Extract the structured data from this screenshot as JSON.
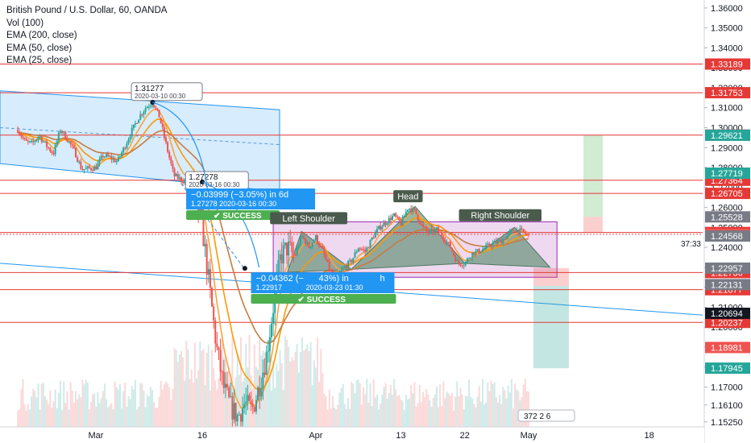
{
  "chart_data": {
    "type": "candlestick",
    "title": "British Pound / U.S. Dollar, 60, OANDA",
    "indicators": [
      "Vol (100)",
      "EMA (200, close)",
      "EMA (50, close)",
      "EMA (25, close)"
    ],
    "y_range": [
      1.15,
      1.364
    ],
    "x_range": [
      "2020-02-19",
      "2020-05-26"
    ],
    "x_ticks": [
      {
        "label": "Mar",
        "date": "2020-03-01"
      },
      {
        "label": "16",
        "date": "2020-03-16"
      },
      {
        "label": "Apr",
        "date": "2020-04-01"
      },
      {
        "label": "13",
        "date": "2020-04-13"
      },
      {
        "label": "22",
        "date": "2020-04-22"
      },
      {
        "label": "May",
        "date": "2020-05-01"
      },
      {
        "label": "18",
        "date": "2020-05-18"
      }
    ],
    "y_ticks": [
      "1.36000",
      "1.35000",
      "1.34000",
      "1.33000",
      "1.32000",
      "1.31000",
      "1.30000",
      "1.29000",
      "1.28000",
      "1.27000",
      "1.26000",
      "1.25000",
      "1.24000",
      "1.23000",
      "1.22000",
      "1.21000",
      "1.20000",
      "1.19000",
      "1.18000",
      "1.17000",
      "1.16100",
      "1.15250"
    ],
    "levels": [
      {
        "value": 1.33189,
        "label": "1.33189"
      },
      {
        "value": 1.31753,
        "label": "1.31753"
      },
      {
        "value": 1.29628,
        "label": "1.29628"
      },
      {
        "value": 1.27364,
        "label": "1.27364"
      },
      {
        "value": 1.26705,
        "label": "1.26705"
      },
      {
        "value": 1.24745,
        "label": "1.24745"
      },
      {
        "value": 1.22736,
        "label": "1.22736"
      },
      {
        "value": 1.21877,
        "label": "1.21877"
      },
      {
        "value": 1.20237,
        "label": "1.20237"
      }
    ],
    "axis_tags": [
      {
        "value": 1.29621,
        "label": "1.29621",
        "color": "#26a69a"
      },
      {
        "value": 1.27719,
        "label": "1.27719",
        "color": "#26a69a"
      },
      {
        "value": 1.25528,
        "label": "1.25528",
        "color": "#787b86"
      },
      {
        "value": 1.24655,
        "label": "1.24655",
        "color": "#ef5350"
      },
      {
        "value": 1.24568,
        "label": "1.24568",
        "color": "#787b86"
      },
      {
        "value": 1.22957,
        "label": "1.22957",
        "color": "#787b86"
      },
      {
        "value": 1.22131,
        "label": "1.22131",
        "color": "#787b86"
      },
      {
        "value": 1.20694,
        "label": "1.20694",
        "color": "#131722"
      },
      {
        "value": 1.18981,
        "label": "1.18981",
        "color": "#ef5350"
      },
      {
        "value": 1.17945,
        "label": "1.17945",
        "color": "#26a69a"
      }
    ],
    "countdown": "37:33",
    "price_path": [
      [
        "2020-02-19",
        1.299
      ],
      [
        "2020-02-20",
        1.293
      ],
      [
        "2020-02-21",
        1.292
      ],
      [
        "2020-02-22",
        1.296
      ],
      [
        "2020-02-23",
        1.291
      ],
      [
        "2020-02-24",
        1.287
      ],
      [
        "2020-02-25",
        1.299
      ],
      [
        "2020-02-26",
        1.294
      ],
      [
        "2020-02-27",
        1.288
      ],
      [
        "2020-02-28",
        1.279
      ],
      [
        "2020-03-01",
        1.28
      ],
      [
        "2020-03-02",
        1.286
      ],
      [
        "2020-03-03",
        1.285
      ],
      [
        "2020-03-04",
        1.283
      ],
      [
        "2020-03-05",
        1.29
      ],
      [
        "2020-03-06",
        1.298
      ],
      [
        "2020-03-07",
        1.305
      ],
      [
        "2020-03-08",
        1.31
      ],
      [
        "2020-03-09",
        1.3127
      ],
      [
        "2020-03-10",
        1.305
      ],
      [
        "2020-03-11",
        1.29
      ],
      [
        "2020-03-12",
        1.276
      ],
      [
        "2020-03-13",
        1.274
      ],
      [
        "2020-03-14",
        1.272
      ],
      [
        "2020-03-15",
        1.265
      ],
      [
        "2020-03-16",
        1.25
      ],
      [
        "2020-03-17",
        1.22
      ],
      [
        "2020-03-18",
        1.19
      ],
      [
        "2020-03-19",
        1.17
      ],
      [
        "2020-03-20",
        1.16
      ],
      [
        "2020-03-21",
        1.155
      ],
      [
        "2020-03-22",
        1.162
      ],
      [
        "2020-03-23",
        1.158
      ],
      [
        "2020-03-24",
        1.17
      ],
      [
        "2020-03-25",
        1.185
      ],
      [
        "2020-03-26",
        1.21
      ],
      [
        "2020-03-27",
        1.235
      ],
      [
        "2020-03-28",
        1.24
      ],
      [
        "2020-03-29",
        1.235
      ],
      [
        "2020-03-30",
        1.246
      ],
      [
        "2020-03-31",
        1.24
      ],
      [
        "2020-04-01",
        1.245
      ],
      [
        "2020-04-02",
        1.238
      ],
      [
        "2020-04-03",
        1.228
      ],
      [
        "2020-04-04",
        1.225
      ],
      [
        "2020-04-05",
        1.23
      ],
      [
        "2020-04-06",
        1.233
      ],
      [
        "2020-04-07",
        1.24
      ],
      [
        "2020-04-08",
        1.238
      ],
      [
        "2020-04-09",
        1.245
      ],
      [
        "2020-04-10",
        1.25
      ],
      [
        "2020-04-11",
        1.253
      ],
      [
        "2020-04-12",
        1.256
      ],
      [
        "2020-04-13",
        1.252
      ],
      [
        "2020-04-14",
        1.26
      ],
      [
        "2020-04-15",
        1.258
      ],
      [
        "2020-04-16",
        1.25
      ],
      [
        "2020-04-17",
        1.247
      ],
      [
        "2020-04-18",
        1.249
      ],
      [
        "2020-04-19",
        1.245
      ],
      [
        "2020-04-20",
        1.24
      ],
      [
        "2020-04-21",
        1.232
      ],
      [
        "2020-04-22",
        1.232
      ],
      [
        "2020-04-23",
        1.237
      ],
      [
        "2020-04-24",
        1.238
      ],
      [
        "2020-04-25",
        1.24
      ],
      [
        "2020-04-26",
        1.242
      ],
      [
        "2020-04-27",
        1.243
      ],
      [
        "2020-04-28",
        1.246
      ],
      [
        "2020-04-29",
        1.249
      ],
      [
        "2020-04-30",
        1.248
      ],
      [
        "2020-05-01",
        1.246
      ]
    ],
    "annotations": [
      {
        "kind": "pin",
        "value": "1.31277",
        "sub": "2020-03-10 00:30"
      },
      {
        "kind": "pin",
        "value": "1.27278",
        "sub": "2020-03-16 00:30"
      },
      {
        "kind": "measure",
        "text": "−0.03999 (−3.05%) in 6d",
        "sub": "1.27278  2020-03-16  00:30",
        "badge": "✔ SUCCESS"
      },
      {
        "kind": "measure",
        "text": "−0.04362 (−",
        "text2": "43%) in",
        "text3": "h",
        "sub": "1.22917",
        "sub2": "2020-03-23  01:30",
        "badge": "✔ SUCCESS"
      },
      {
        "kind": "label",
        "text": "Left Shoulder"
      },
      {
        "kind": "label",
        "text": "Head"
      },
      {
        "kind": "label",
        "text": "Right Shoulder"
      }
    ],
    "footer_badge": "372  2 6"
  }
}
